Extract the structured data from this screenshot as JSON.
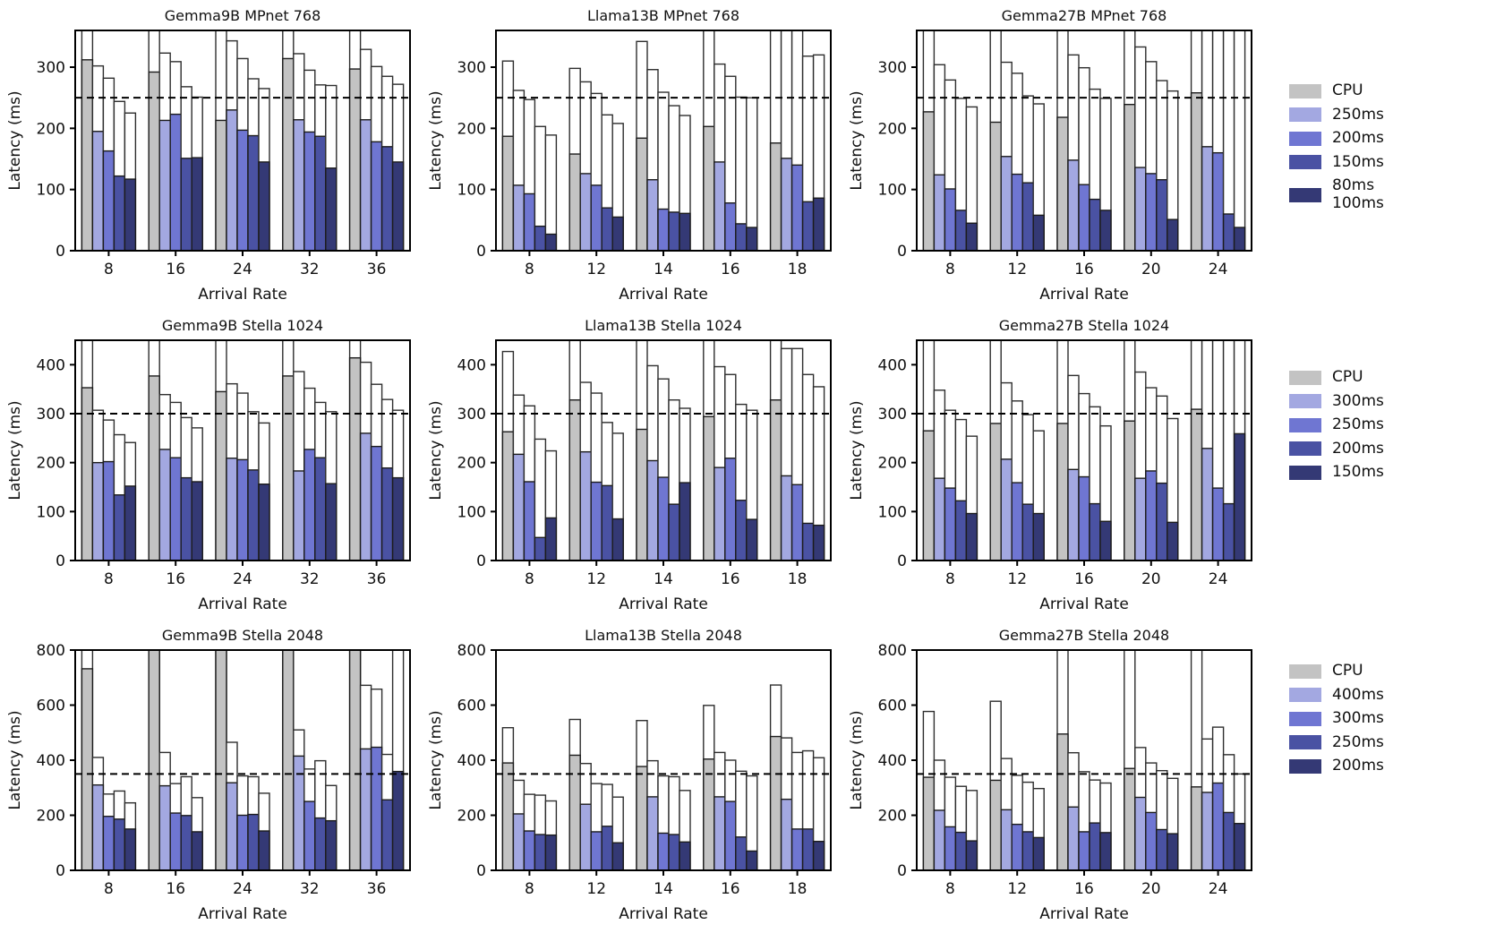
{
  "figure_title": "",
  "colors": {
    "background": "#ffffff",
    "cpu_gray": "#c3c3c3",
    "slo_light": "#a3a8e1",
    "slo_mid": "#6f76d2",
    "slo_dark": "#4a52a3",
    "slo_navy": "#343975",
    "bar_edge": "#1c1c1c",
    "white_bar_fill": "#ffffff",
    "dashed_line": "#000000",
    "axis": "#000000"
  },
  "legends": [
    {
      "items": [
        {
          "label": "CPU",
          "color": "#c3c3c3"
        },
        {
          "label": "250ms",
          "color": "#a3a8e1"
        },
        {
          "label": "200ms",
          "color": "#6f76d2"
        },
        {
          "label": "150ms",
          "color": "#4a52a3"
        },
        {
          "label": "80ms\n100ms",
          "color": "#343975"
        }
      ]
    },
    {
      "items": [
        {
          "label": "CPU",
          "color": "#c3c3c3"
        },
        {
          "label": "300ms",
          "color": "#a3a8e1"
        },
        {
          "label": "250ms",
          "color": "#6f76d2"
        },
        {
          "label": "200ms",
          "color": "#4a52a3"
        },
        {
          "label": "150ms",
          "color": "#343975"
        }
      ]
    },
    {
      "items": [
        {
          "label": "CPU",
          "color": "#c3c3c3"
        },
        {
          "label": "400ms",
          "color": "#a3a8e1"
        },
        {
          "label": "300ms",
          "color": "#6f76d2"
        },
        {
          "label": "250ms",
          "color": "#4a52a3"
        },
        {
          "label": "200ms",
          "color": "#343975"
        }
      ]
    }
  ],
  "chart_data": [
    {
      "type": "bar",
      "title": "Gemma9B MPnet 768",
      "xlabel": "Arrival Rate",
      "ylabel": "Latency (ms)",
      "categories": [
        8,
        16,
        24,
        32,
        36
      ],
      "yticks": [
        0,
        100,
        200,
        300
      ],
      "ylim": [
        0,
        360
      ],
      "dashed_line": 250,
      "series": [
        {
          "name": "CPU",
          "color": "#c3c3c3",
          "filled": [
            312,
            292,
            213,
            314,
            297
          ],
          "total": [
            380,
            380,
            380,
            380,
            380
          ]
        },
        {
          "name": "250ms",
          "color": "#a3a8e1",
          "filled": [
            195,
            213,
            230,
            214,
            214
          ],
          "total": [
            302,
            323,
            343,
            322,
            329
          ]
        },
        {
          "name": "200ms",
          "color": "#6f76d2",
          "filled": [
            163,
            223,
            197,
            194,
            178
          ],
          "total": [
            282,
            309,
            314,
            295,
            301
          ]
        },
        {
          "name": "150ms",
          "color": "#4a52a3",
          "filled": [
            122,
            151,
            188,
            187,
            170
          ],
          "total": [
            244,
            268,
            281,
            271,
            285
          ]
        },
        {
          "name": "80ms/100ms",
          "color": "#343975",
          "filled": [
            117,
            152,
            145,
            135,
            145
          ],
          "total": [
            225,
            251,
            265,
            270,
            272
          ]
        }
      ]
    },
    {
      "type": "bar",
      "title": "Llama13B MPnet 768",
      "xlabel": "Arrival Rate",
      "ylabel": "Latency (ms)",
      "categories": [
        8,
        12,
        14,
        16,
        18
      ],
      "yticks": [
        0,
        100,
        200,
        300
      ],
      "ylim": [
        0,
        360
      ],
      "dashed_line": 250,
      "series": [
        {
          "name": "CPU",
          "color": "#c3c3c3",
          "filled": [
            187,
            158,
            184,
            203,
            176
          ],
          "total": [
            310,
            298,
            342,
            380,
            380
          ]
        },
        {
          "name": "250ms",
          "color": "#a3a8e1",
          "filled": [
            107,
            126,
            116,
            145,
            151
          ],
          "total": [
            262,
            276,
            296,
            305,
            380
          ]
        },
        {
          "name": "200ms",
          "color": "#6f76d2",
          "filled": [
            93,
            107,
            68,
            78,
            140
          ],
          "total": [
            247,
            257,
            259,
            285,
            380
          ]
        },
        {
          "name": "150ms",
          "color": "#4a52a3",
          "filled": [
            40,
            70,
            63,
            44,
            80
          ],
          "total": [
            203,
            222,
            237,
            251,
            318
          ]
        },
        {
          "name": "80ms/100ms",
          "color": "#343975",
          "filled": [
            27,
            55,
            61,
            38,
            86
          ],
          "total": [
            189,
            208,
            221,
            250,
            320
          ]
        }
      ]
    },
    {
      "type": "bar",
      "title": "Gemma27B MPnet 768",
      "xlabel": "Arrival Rate",
      "ylabel": "Latency (ms)",
      "categories": [
        8,
        12,
        16,
        20,
        24
      ],
      "yticks": [
        0,
        100,
        200,
        300
      ],
      "ylim": [
        0,
        360
      ],
      "dashed_line": 250,
      "series": [
        {
          "name": "CPU",
          "color": "#c3c3c3",
          "filled": [
            227,
            210,
            218,
            239,
            258
          ],
          "total": [
            380,
            380,
            380,
            380,
            380
          ]
        },
        {
          "name": "250ms",
          "color": "#a3a8e1",
          "filled": [
            124,
            154,
            148,
            136,
            170
          ],
          "total": [
            304,
            308,
            320,
            333,
            380
          ]
        },
        {
          "name": "200ms",
          "color": "#6f76d2",
          "filled": [
            101,
            125,
            108,
            126,
            160
          ],
          "total": [
            279,
            290,
            299,
            309,
            380
          ]
        },
        {
          "name": "150ms",
          "color": "#4a52a3",
          "filled": [
            66,
            111,
            84,
            116,
            60
          ],
          "total": [
            249,
            253,
            264,
            278,
            380
          ]
        },
        {
          "name": "80ms/100ms",
          "color": "#343975",
          "filled": [
            45,
            58,
            66,
            51,
            38
          ],
          "total": [
            235,
            240,
            249,
            261,
            380
          ]
        }
      ]
    },
    {
      "type": "bar",
      "title": "Gemma9B Stella 1024",
      "xlabel": "Arrival Rate",
      "ylabel": "Latency (ms)",
      "categories": [
        8,
        16,
        24,
        32,
        36
      ],
      "yticks": [
        0,
        100,
        200,
        300,
        400
      ],
      "ylim": [
        0,
        450
      ],
      "dashed_line": 300,
      "series": [
        {
          "name": "CPU",
          "color": "#c3c3c3",
          "filled": [
            353,
            377,
            345,
            377,
            414
          ],
          "total": [
            470,
            470,
            470,
            470,
            470
          ]
        },
        {
          "name": "300ms",
          "color": "#a3a8e1",
          "filled": [
            200,
            227,
            209,
            183,
            260
          ],
          "total": [
            307,
            339,
            361,
            386,
            405
          ]
        },
        {
          "name": "250ms",
          "color": "#6f76d2",
          "filled": [
            202,
            210,
            206,
            227,
            233
          ],
          "total": [
            287,
            323,
            342,
            352,
            360
          ]
        },
        {
          "name": "200ms",
          "color": "#4a52a3",
          "filled": [
            134,
            169,
            185,
            210,
            189
          ],
          "total": [
            257,
            292,
            304,
            323,
            329
          ]
        },
        {
          "name": "150ms",
          "color": "#343975",
          "filled": [
            152,
            161,
            156,
            157,
            169
          ],
          "total": [
            241,
            271,
            281,
            304,
            307
          ]
        }
      ]
    },
    {
      "type": "bar",
      "title": "Llama13B Stella 1024",
      "xlabel": "Arrival Rate",
      "ylabel": "Latency (ms)",
      "categories": [
        8,
        12,
        14,
        16,
        18
      ],
      "yticks": [
        0,
        100,
        200,
        300,
        400
      ],
      "ylim": [
        0,
        450
      ],
      "dashed_line": 300,
      "series": [
        {
          "name": "CPU",
          "color": "#c3c3c3",
          "filled": [
            263,
            328,
            268,
            294,
            328
          ],
          "total": [
            427,
            470,
            470,
            470,
            470
          ]
        },
        {
          "name": "300ms",
          "color": "#a3a8e1",
          "filled": [
            217,
            222,
            204,
            190,
            173
          ],
          "total": [
            338,
            364,
            398,
            396,
            433
          ]
        },
        {
          "name": "250ms",
          "color": "#6f76d2",
          "filled": [
            161,
            160,
            170,
            209,
            155
          ],
          "total": [
            316,
            342,
            371,
            380,
            433
          ]
        },
        {
          "name": "200ms",
          "color": "#4a52a3",
          "filled": [
            47,
            153,
            115,
            123,
            76
          ],
          "total": [
            248,
            282,
            328,
            319,
            380
          ]
        },
        {
          "name": "150ms",
          "color": "#343975",
          "filled": [
            87,
            85,
            159,
            84,
            72
          ],
          "total": [
            224,
            260,
            311,
            307,
            355
          ]
        }
      ]
    },
    {
      "type": "bar",
      "title": "Gemma27B Stella 1024",
      "xlabel": "Arrival Rate",
      "ylabel": "Latency (ms)",
      "categories": [
        8,
        12,
        16,
        20,
        24
      ],
      "yticks": [
        0,
        100,
        200,
        300,
        400
      ],
      "ylim": [
        0,
        450
      ],
      "dashed_line": 300,
      "series": [
        {
          "name": "CPU",
          "color": "#c3c3c3",
          "filled": [
            265,
            280,
            280,
            285,
            309
          ],
          "total": [
            470,
            470,
            470,
            470,
            470
          ]
        },
        {
          "name": "300ms",
          "color": "#a3a8e1",
          "filled": [
            168,
            207,
            186,
            168,
            229
          ],
          "total": [
            348,
            363,
            378,
            385,
            470
          ]
        },
        {
          "name": "250ms",
          "color": "#6f76d2",
          "filled": [
            148,
            159,
            171,
            183,
            148
          ],
          "total": [
            307,
            326,
            341,
            353,
            470
          ]
        },
        {
          "name": "200ms",
          "color": "#4a52a3",
          "filled": [
            122,
            115,
            116,
            158,
            116
          ],
          "total": [
            288,
            298,
            314,
            336,
            470
          ]
        },
        {
          "name": "150ms",
          "color": "#343975",
          "filled": [
            96,
            96,
            80,
            78,
            259
          ],
          "total": [
            254,
            265,
            275,
            290,
            470
          ]
        }
      ]
    },
    {
      "type": "bar",
      "title": "Gemma9B Stella 2048",
      "xlabel": "Arrival Rate",
      "ylabel": "Latency (ms)",
      "categories": [
        8,
        16,
        24,
        32,
        36
      ],
      "yticks": [
        0,
        200,
        400,
        600,
        800
      ],
      "ylim": [
        0,
        800
      ],
      "dashed_line": 350,
      "series": [
        {
          "name": "CPU",
          "color": "#c3c3c3",
          "filled": [
            732,
            840,
            840,
            840,
            840
          ],
          "total": [
            840,
            840,
            840,
            840,
            840
          ]
        },
        {
          "name": "400ms",
          "color": "#a3a8e1",
          "filled": [
            310,
            307,
            318,
            415,
            441
          ],
          "total": [
            410,
            428,
            465,
            510,
            672
          ]
        },
        {
          "name": "300ms",
          "color": "#6f76d2",
          "filled": [
            196,
            208,
            200,
            250,
            447
          ],
          "total": [
            277,
            315,
            343,
            368,
            658
          ]
        },
        {
          "name": "250ms",
          "color": "#4a52a3",
          "filled": [
            186,
            199,
            203,
            190,
            256
          ],
          "total": [
            288,
            340,
            340,
            398,
            421
          ]
        },
        {
          "name": "200ms",
          "color": "#343975",
          "filled": [
            150,
            140,
            143,
            180,
            359
          ],
          "total": [
            245,
            264,
            280,
            308,
            840
          ]
        }
      ]
    },
    {
      "type": "bar",
      "title": "Llama13B Stella 2048",
      "xlabel": "Arrival Rate",
      "ylabel": "Latency (ms)",
      "categories": [
        8,
        12,
        14,
        16,
        18
      ],
      "yticks": [
        0,
        200,
        400,
        600,
        800
      ],
      "ylim": [
        0,
        800
      ],
      "dashed_line": 350,
      "series": [
        {
          "name": "CPU",
          "color": "#c3c3c3",
          "filled": [
            390,
            418,
            377,
            404,
            486
          ],
          "total": [
            518,
            548,
            544,
            599,
            673
          ]
        },
        {
          "name": "400ms",
          "color": "#a3a8e1",
          "filled": [
            205,
            240,
            267,
            267,
            258
          ],
          "total": [
            327,
            388,
            398,
            428,
            481
          ]
        },
        {
          "name": "300ms",
          "color": "#6f76d2",
          "filled": [
            143,
            140,
            135,
            250,
            150
          ],
          "total": [
            276,
            315,
            343,
            400,
            428
          ]
        },
        {
          "name": "250ms",
          "color": "#4a52a3",
          "filled": [
            130,
            160,
            130,
            121,
            150
          ],
          "total": [
            273,
            312,
            340,
            360,
            434
          ]
        },
        {
          "name": "200ms",
          "color": "#343975",
          "filled": [
            128,
            100,
            103,
            70,
            105
          ],
          "total": [
            252,
            266,
            290,
            343,
            409
          ]
        }
      ]
    },
    {
      "type": "bar",
      "title": "Gemma27B Stella 2048",
      "xlabel": "Arrival Rate",
      "ylabel": "Latency (ms)",
      "categories": [
        8,
        12,
        16,
        20,
        24
      ],
      "yticks": [
        0,
        200,
        400,
        600,
        800
      ],
      "ylim": [
        0,
        800
      ],
      "dashed_line": 350,
      "series": [
        {
          "name": "CPU",
          "color": "#c3c3c3",
          "filled": [
            338,
            327,
            495,
            370,
            303
          ],
          "total": [
            577,
            614,
            840,
            840,
            840
          ]
        },
        {
          "name": "400ms",
          "color": "#a3a8e1",
          "filled": [
            218,
            220,
            230,
            265,
            283
          ],
          "total": [
            400,
            406,
            427,
            446,
            477
          ]
        },
        {
          "name": "300ms",
          "color": "#6f76d2",
          "filled": [
            158,
            167,
            140,
            210,
            317
          ],
          "total": [
            338,
            345,
            358,
            390,
            520
          ]
        },
        {
          "name": "250ms",
          "color": "#4a52a3",
          "filled": [
            138,
            140,
            172,
            148,
            210
          ],
          "total": [
            305,
            320,
            328,
            362,
            420
          ]
        },
        {
          "name": "200ms",
          "color": "#343975",
          "filled": [
            107,
            119,
            137,
            133,
            170
          ],
          "total": [
            290,
            297,
            317,
            334,
            350
          ]
        }
      ]
    }
  ]
}
